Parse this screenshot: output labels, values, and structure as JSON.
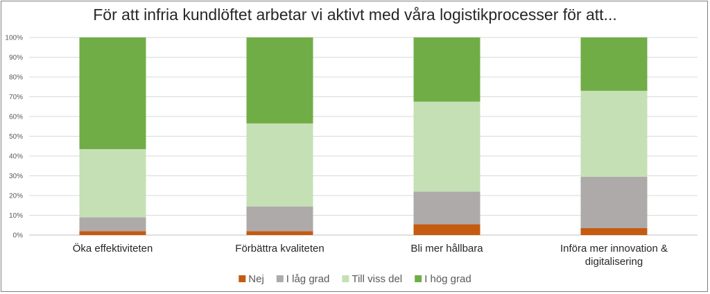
{
  "chart_data": {
    "type": "bar",
    "stacked": "percent",
    "title": "För att infria kundlöftet arbetar vi aktivt med våra logistikprocesser för att...",
    "categories": [
      [
        "Öka effektiviteten"
      ],
      [
        "Förbättra kvaliteten"
      ],
      [
        "Bli mer hållbara"
      ],
      [
        "Införa mer innovation &",
        "digitalisering"
      ]
    ],
    "series": [
      {
        "name": "Nej",
        "color": "#c55a11",
        "values": [
          2,
          2,
          5.5,
          3.5
        ]
      },
      {
        "name": "I låg grad",
        "color": "#aeaaaa",
        "values": [
          7,
          12.5,
          16.5,
          26
        ]
      },
      {
        "name": "Till viss del",
        "color": "#c5e0b4",
        "values": [
          34.5,
          42,
          45.5,
          43.5
        ]
      },
      {
        "name": "I hög grad",
        "color": "#70ad47",
        "values": [
          56.5,
          43.5,
          32.5,
          27
        ]
      }
    ],
    "ylim": [
      0,
      100
    ],
    "yticks": [
      "0%",
      "10%",
      "20%",
      "30%",
      "40%",
      "50%",
      "60%",
      "70%",
      "80%",
      "90%",
      "100%"
    ],
    "grid": true,
    "legend": "bottom"
  }
}
